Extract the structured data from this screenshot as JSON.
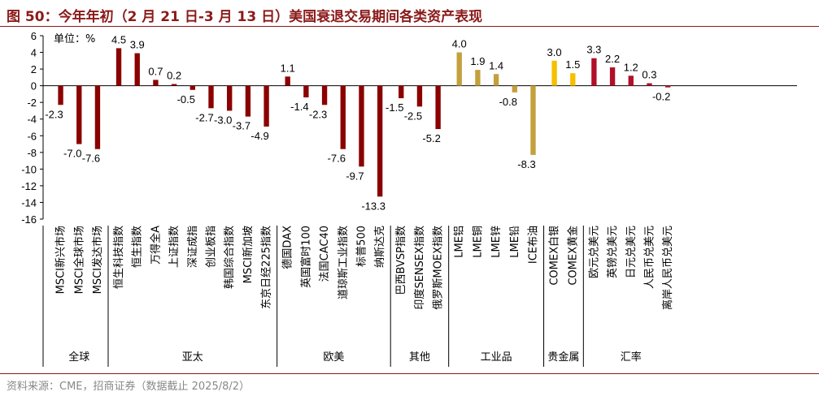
{
  "figure": {
    "title": "图 50：今年年初（2 月 21 日-3 月 13 日）美国衰退交易期间各类资产表现",
    "unit": "单位：%",
    "source": "资料来源：CME，招商证券（数据截止 2025/8/2）"
  },
  "chart_data": {
    "type": "bar",
    "ylim": [
      -16,
      6
    ],
    "yticks": [
      6,
      4,
      2,
      0,
      -2,
      -4,
      -6,
      -8,
      -10,
      -12,
      -14,
      -16
    ],
    "grid": false,
    "legend": "none",
    "groups": [
      {
        "name": "全球",
        "color": "#8B0000",
        "categories": [
          "MSCI新兴市场",
          "MSCI全球市场",
          "MSCI发达市场"
        ],
        "values": [
          -2.3,
          -7.0,
          -7.6
        ],
        "labels": [
          "-2.3",
          "-7.0",
          "-7.6"
        ]
      },
      {
        "name": "亚太",
        "color": "#8B0000",
        "categories": [
          "恒生科技指数",
          "恒生指数",
          "万得全A",
          "上证指数",
          "深证成指",
          "创业板指",
          "韩国综合指数",
          "MSCI新加坡",
          "东京日经225指数"
        ],
        "values": [
          4.5,
          3.9,
          0.7,
          0.2,
          -0.5,
          -2.7,
          -3.0,
          -3.7,
          -4.9
        ],
        "labels": [
          "4.5",
          "3.9",
          "0.7",
          "0.2",
          "-0.5",
          "-2.7",
          "-3.0",
          "-3.7",
          "-4.9"
        ]
      },
      {
        "name": "欧美",
        "color": "#8B0000",
        "categories": [
          "德国DAX",
          "英国富时100",
          "法国CAC40",
          "道琼斯工业指数",
          "标普500",
          "纳斯达克"
        ],
        "values": [
          1.1,
          -1.4,
          -2.3,
          -7.6,
          -9.7,
          -13.3
        ],
        "labels": [
          "1.1",
          "-1.4",
          "-2.3",
          "-7.6",
          "-9.7",
          "-13.3"
        ]
      },
      {
        "name": "其他",
        "color": "#8B0000",
        "categories": [
          "巴西BVSP指数",
          "印度SENSEX指数",
          "俄罗斯MOEX指数"
        ],
        "values": [
          -1.5,
          -2.5,
          -5.2
        ],
        "labels": [
          "-1.5",
          "-2.5",
          "-5.2"
        ]
      },
      {
        "name": "工业品",
        "color": "#C4A03C",
        "categories": [
          "LME铝",
          "LME铜",
          "LME锌",
          "LME铅",
          "ICE布油"
        ],
        "values": [
          4.0,
          1.9,
          1.4,
          -0.8,
          -8.3
        ],
        "labels": [
          "4.0",
          "1.9",
          "1.4",
          "-0.8",
          "-8.3"
        ]
      },
      {
        "name": "贵金属",
        "color": "#F5C000",
        "categories": [
          "COMEX白银",
          "COMEX黄金"
        ],
        "values": [
          3.0,
          1.5
        ],
        "labels": [
          "3.0",
          "1.5"
        ]
      },
      {
        "name": "汇率",
        "color": "#B0102A",
        "categories": [
          "欧元兑美元",
          "英镑兑美元",
          "日元兑美元",
          "人民币兑美元",
          "离岸人民币兑美元"
        ],
        "values": [
          3.3,
          2.2,
          1.2,
          0.3,
          -0.2
        ],
        "labels": [
          "3.3",
          "2.2",
          "1.2",
          "0.3",
          "-0.2"
        ]
      }
    ]
  }
}
